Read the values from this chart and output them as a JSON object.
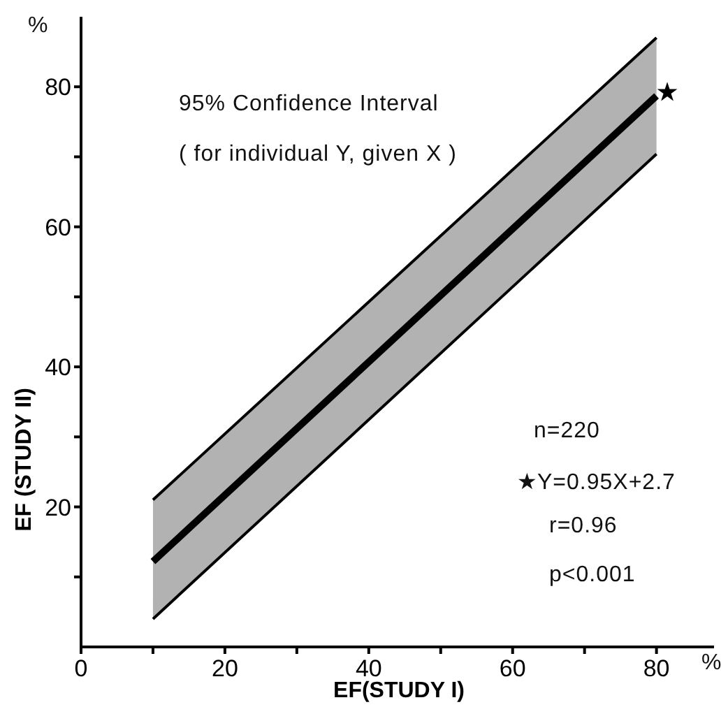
{
  "chart_data": {
    "type": "line",
    "xlabel": "EF(STUDY I)",
    "ylabel": "EF (STUDY II)",
    "xlim": [
      0,
      88
    ],
    "ylim": [
      0,
      90
    ],
    "xticks": [
      0,
      {
        "value": 10,
        "label": null
      },
      20,
      {
        "value": 30,
        "label": null
      },
      40,
      {
        "value": 50,
        "label": null
      },
      60,
      {
        "value": 70,
        "label": null
      },
      80
    ],
    "yticks": [
      {
        "value": 10,
        "label": null
      },
      20,
      {
        "value": 30,
        "label": null
      },
      40,
      {
        "value": 50,
        "label": null
      },
      60,
      {
        "value": 70,
        "label": null
      },
      80
    ],
    "series": [
      {
        "color": "#000000",
        "x": [
          10,
          80
        ],
        "values": [
          12.2,
          78.7
        ],
        "lower": [
          4,
          70.4
        ],
        "upper": [
          21,
          87
        ]
      },
      {
        "color": "#000000",
        "x": [
          10,
          80
        ],
        "values": [
          21,
          87
        ]
      },
      {
        "color": "#000000",
        "x": [
          10,
          80
        ],
        "values": [
          4,
          70.4
        ]
      },
      {
        "type": "scatter",
        "color": "#000000",
        "marker": "star",
        "x": [
          81.5
        ],
        "values": [
          79.2
        ]
      }
    ],
    "annotations": [
      "95% Confidence Interval",
      "( for individual Y, given X )",
      "n=220",
      "★Y=0.95X+2.7",
      "r=0.96",
      "p<0.001",
      "%",
      "%"
    ]
  }
}
